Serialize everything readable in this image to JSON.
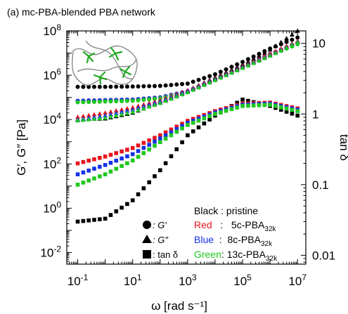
{
  "chart_data": {
    "type": "scatter",
    "title": "(a) mc-PBA-blended PBA network",
    "xlabel": "ω [rad s⁻¹]",
    "ylabel_left": "G′, G″ [Pa]",
    "ylabel_right": "tan δ",
    "x_scale": "log",
    "y_scale": "log",
    "xlim": [
      0.04,
      20000000
    ],
    "ylim_left": [
      0.003,
      100000000
    ],
    "ylim_right": [
      0.0075,
      15
    ],
    "x_ticks": [
      {
        "value": 0.1,
        "base": "10",
        "exp": "-1"
      },
      {
        "value": 10,
        "base": "10",
        "exp": "1"
      },
      {
        "value": 1000,
        "base": "10",
        "exp": "3"
      },
      {
        "value": 100000,
        "base": "10",
        "exp": "5"
      },
      {
        "value": 10000000,
        "base": "10",
        "exp": "7"
      }
    ],
    "y_ticks_left": [
      {
        "value": 0.01,
        "base": "10",
        "exp": "-2"
      },
      {
        "value": 1,
        "base": "10",
        "exp": "0"
      },
      {
        "value": 100,
        "base": "10",
        "exp": "2"
      },
      {
        "value": 10000,
        "base": "10",
        "exp": "4"
      },
      {
        "value": 1000000,
        "base": "10",
        "exp": "6"
      },
      {
        "value": 100000000,
        "base": "10",
        "exp": "8"
      }
    ],
    "y_ticks_right": [
      {
        "value": 0.01,
        "label": "0.01"
      },
      {
        "value": 0.1,
        "label": "0.1"
      },
      {
        "value": 1,
        "label": "1"
      },
      {
        "value": 10,
        "label": "10"
      }
    ],
    "samples": [
      {
        "key": "pristine",
        "color": "#000000"
      },
      {
        "key": "5c",
        "color": "#e8141c"
      },
      {
        "key": "8c",
        "color": "#1432e6"
      },
      {
        "key": "13c",
        "color": "#1ec81e"
      }
    ],
    "legend": {
      "placement": "bottom-right",
      "markers": [
        {
          "marker": "circle",
          "label": ": G′"
        },
        {
          "marker": "triangle",
          "label": ": G″"
        },
        {
          "marker": "square",
          "label": ": tan δ"
        }
      ],
      "colors": [
        {
          "color_word": "Black",
          "sep": " : ",
          "sample": "pristine",
          "sub": "",
          "color": "#000000"
        },
        {
          "color_word": "Red",
          "sep": "   :   ",
          "sample": "5c-PBA",
          "sub": "32k",
          "color": "#e8141c"
        },
        {
          "color_word": "Blue",
          "sep": "  :  ",
          "sample": "8c-PBA",
          "sub": "32k",
          "color": "#1432e6"
        },
        {
          "color_word": "Green",
          "sep": ": ",
          "sample": "13c-PBA",
          "sub": "32k",
          "color": "#1ec81e"
        }
      ]
    },
    "series": [
      {
        "sample": "pristine",
        "quantity": "G'",
        "marker": "circle",
        "axis": "left",
        "x": [
          0.1,
          1,
          10,
          100,
          1000,
          10000,
          100000,
          1000000,
          10000000
        ],
        "y": [
          300000,
          300000,
          310000,
          330000,
          420000,
          1100000,
          4000000,
          16000000,
          50000000
        ]
      },
      {
        "sample": "5c",
        "quantity": "G'",
        "marker": "circle",
        "axis": "left",
        "x": [
          0.1,
          1,
          10,
          100,
          1000,
          10000,
          100000,
          1000000,
          10000000
        ],
        "y": [
          70000,
          75000,
          80000,
          100000,
          190000,
          650000,
          2600000,
          9000000,
          30000000
        ]
      },
      {
        "sample": "8c",
        "quantity": "G'",
        "marker": "circle",
        "axis": "left",
        "x": [
          0.1,
          1,
          10,
          100,
          1000,
          10000,
          100000,
          1000000,
          10000000
        ],
        "y": [
          70000,
          75000,
          80000,
          100000,
          190000,
          640000,
          2500000,
          8500000,
          28000000
        ]
      },
      {
        "sample": "13c",
        "quantity": "G'",
        "marker": "circle",
        "axis": "left",
        "x": [
          0.1,
          1,
          10,
          100,
          1000,
          10000,
          100000,
          1000000,
          10000000
        ],
        "y": [
          60000,
          65000,
          70000,
          90000,
          170000,
          600000,
          2300000,
          8000000,
          25000000
        ]
      },
      {
        "sample": "pristine",
        "quantity": "G''",
        "marker": "triangle",
        "axis": "left",
        "x": [
          0.1,
          1,
          10,
          100,
          1000,
          10000,
          100000,
          1000000,
          10000000
        ],
        "y": [
          10000,
          11000,
          20000,
          60000,
          200000,
          800000,
          3000000,
          14000000,
          100000000
        ]
      },
      {
        "sample": "5c",
        "quantity": "G''",
        "marker": "triangle",
        "axis": "left",
        "x": [
          0.1,
          1,
          10,
          100,
          1000,
          10000,
          100000,
          1000000,
          10000000
        ],
        "y": [
          13000,
          20000,
          35000,
          75000,
          210000,
          700000,
          2500000,
          9000000,
          35000000
        ]
      },
      {
        "sample": "8c",
        "quantity": "G''",
        "marker": "triangle",
        "axis": "left",
        "x": [
          0.1,
          1,
          10,
          100,
          1000,
          10000,
          100000,
          1000000,
          10000000
        ],
        "y": [
          10000,
          15000,
          28000,
          65000,
          190000,
          650000,
          2300000,
          8000000,
          32000000
        ]
      },
      {
        "sample": "13c",
        "quantity": "G''",
        "marker": "triangle",
        "axis": "left",
        "x": [
          0.1,
          1,
          10,
          100,
          1000,
          10000,
          100000,
          1000000,
          10000000
        ],
        "y": [
          9000,
          12000,
          22000,
          55000,
          170000,
          600000,
          2100000,
          7500000,
          30000000
        ]
      },
      {
        "sample": "pristine",
        "quantity": "tan δ",
        "marker": "square",
        "axis": "right",
        "x": [
          0.1,
          1,
          10,
          100,
          1000,
          10000,
          100000,
          1000000,
          10000000
        ],
        "y": [
          0.03,
          0.033,
          0.06,
          0.16,
          0.5,
          0.95,
          1.6,
          1.3,
          0.95
        ]
      },
      {
        "sample": "5c",
        "quantity": "tan δ",
        "marker": "square",
        "axis": "right",
        "x": [
          0.1,
          1,
          10,
          100,
          1000,
          10000,
          100000,
          1000000,
          10000000
        ],
        "y": [
          0.2,
          0.25,
          0.33,
          0.5,
          0.8,
          1.1,
          1.4,
          1.45,
          1.2
        ]
      },
      {
        "sample": "8c",
        "quantity": "tan δ",
        "marker": "square",
        "axis": "right",
        "x": [
          0.1,
          1,
          10,
          100,
          1000,
          10000,
          100000,
          1000000,
          10000000
        ],
        "y": [
          0.14,
          0.19,
          0.27,
          0.45,
          0.75,
          1.05,
          1.35,
          1.4,
          1.15
        ]
      },
      {
        "sample": "13c",
        "quantity": "tan δ",
        "marker": "square",
        "axis": "right",
        "x": [
          0.1,
          1,
          10,
          100,
          1000,
          10000,
          100000,
          1000000,
          10000000
        ],
        "y": [
          0.1,
          0.14,
          0.22,
          0.4,
          0.7,
          1.0,
          1.3,
          1.35,
          1.1
        ]
      }
    ]
  }
}
